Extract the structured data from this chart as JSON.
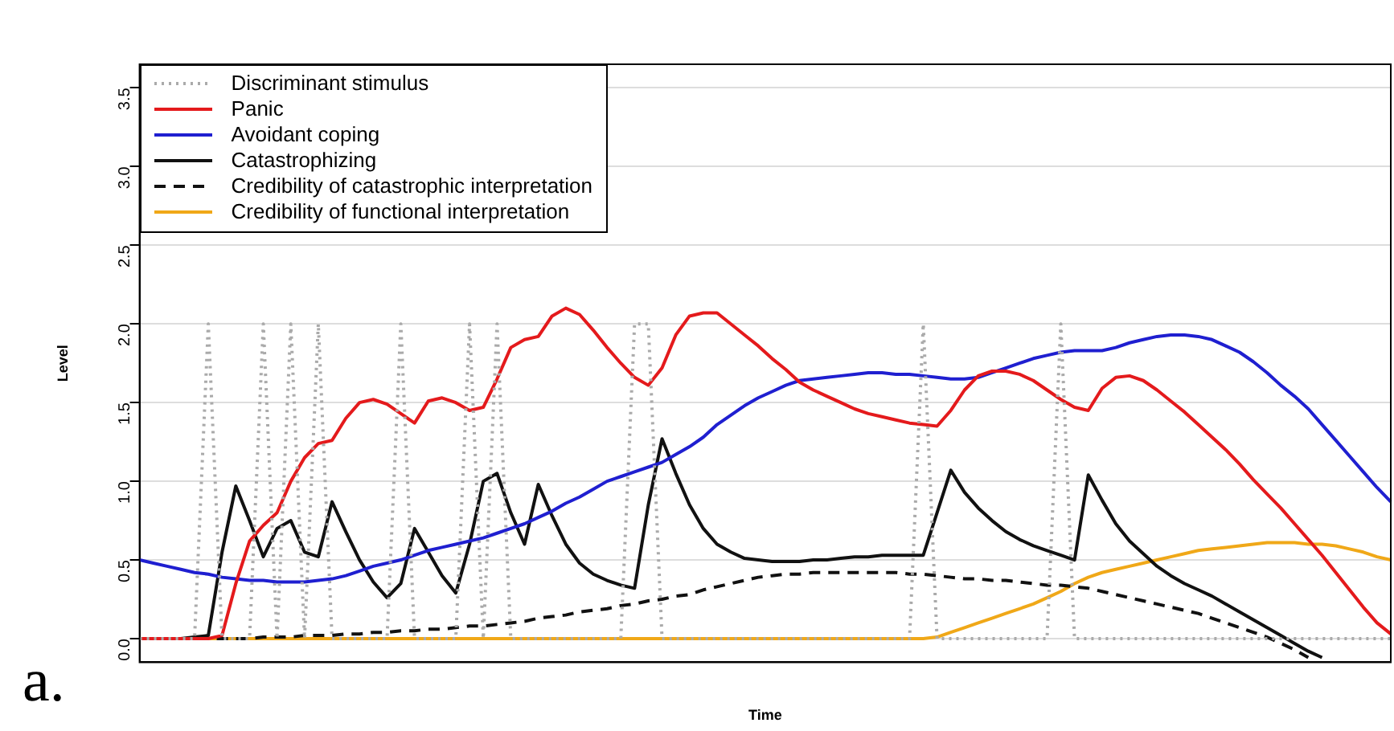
{
  "chart_data": {
    "type": "line",
    "xlabel": "Time",
    "ylabel": "Level",
    "ylim": [
      -0.15,
      3.65
    ],
    "yticks": [
      {
        "value": 0,
        "label": "0.0"
      },
      {
        "value": 0.5,
        "label": "0.5"
      },
      {
        "value": 1,
        "label": "1.0"
      },
      {
        "value": 1.5,
        "label": "1.5"
      },
      {
        "value": 2,
        "label": "2.0"
      },
      {
        "value": 2.5,
        "label": "2.5"
      },
      {
        "value": 3,
        "label": "3.0"
      },
      {
        "value": 3.5,
        "label": "3.5"
      }
    ],
    "grid": "y",
    "legend": "top left",
    "tick_labels": "y",
    "marker": "none",
    "annotations": [
      "a."
    ],
    "categories": [
      null,
      null,
      null,
      null,
      null,
      null,
      null,
      null,
      null,
      null,
      null,
      null,
      null,
      null,
      null,
      null,
      null,
      null,
      null,
      null,
      null,
      null,
      null,
      null,
      null,
      null,
      null,
      null,
      null,
      null,
      null,
      null,
      null,
      null,
      null,
      null,
      null,
      null,
      null,
      null,
      null,
      null,
      null,
      null,
      null,
      null,
      null,
      null,
      null,
      null,
      null,
      null,
      null,
      null,
      null,
      null,
      null,
      null,
      null,
      null,
      null,
      null,
      null,
      null,
      null,
      null,
      null,
      null,
      null,
      null,
      null,
      null,
      null,
      null,
      null,
      null,
      null,
      null,
      null,
      null,
      null,
      null,
      null,
      null,
      null,
      null,
      null,
      null,
      null,
      null,
      null,
      null
    ],
    "series": [
      {
        "name": "Discriminant stimulus",
        "color": "#aaaaaa",
        "line_style": "dotted",
        "values": [
          0,
          0,
          0,
          0,
          0,
          2,
          0,
          0,
          0,
          2,
          0,
          2,
          0,
          2,
          0,
          0,
          0,
          0,
          0,
          2,
          0,
          0,
          0,
          0,
          2,
          0,
          2,
          0,
          0,
          0,
          0,
          0,
          0,
          0,
          0,
          0,
          2,
          2,
          0,
          0,
          0,
          0,
          0,
          0,
          0,
          0,
          0,
          0,
          0,
          0,
          0,
          0,
          0,
          0,
          0,
          0,
          0,
          2,
          0,
          0,
          0,
          0,
          0,
          0,
          0,
          0,
          0,
          2,
          0,
          0,
          0,
          0,
          0,
          0,
          0,
          0,
          0,
          0,
          0,
          0,
          0,
          0,
          0,
          0,
          0,
          0,
          0,
          0,
          0,
          0,
          0,
          0
        ]
      },
      {
        "name": "Panic",
        "color": "#e41a1c",
        "line_style": "solid",
        "values": [
          0,
          0,
          0,
          0,
          0,
          0,
          0.02,
          0.35,
          0.62,
          0.72,
          0.8,
          1.0,
          1.15,
          1.24,
          1.26,
          1.4,
          1.5,
          1.52,
          1.49,
          1.43,
          1.37,
          1.51,
          1.53,
          1.5,
          1.45,
          1.47,
          1.65,
          1.85,
          1.9,
          1.92,
          2.05,
          2.1,
          2.06,
          1.96,
          1.85,
          1.75,
          1.66,
          1.61,
          1.72,
          1.93,
          2.05,
          2.07,
          2.07,
          2.0,
          1.93,
          1.86,
          1.78,
          1.71,
          1.63,
          1.58,
          1.54,
          1.5,
          1.46,
          1.43,
          1.41,
          1.39,
          1.37,
          1.36,
          1.35,
          1.45,
          1.58,
          1.67,
          1.7,
          1.7,
          1.68,
          1.64,
          1.58,
          1.52,
          1.47,
          1.45,
          1.59,
          1.66,
          1.67,
          1.64,
          1.58,
          1.51,
          1.44,
          1.36,
          1.28,
          1.2,
          1.11,
          1.01,
          0.92,
          0.83,
          0.73,
          0.63,
          0.53,
          0.42,
          0.31,
          0.2,
          0.1,
          0.03
        ]
      },
      {
        "name": "Avoidant coping",
        "color": "#1f1fd0",
        "line_style": "solid",
        "values": [
          0.5,
          0.48,
          0.46,
          0.44,
          0.42,
          0.41,
          0.39,
          0.38,
          0.37,
          0.37,
          0.36,
          0.36,
          0.36,
          0.37,
          0.38,
          0.4,
          0.43,
          0.46,
          0.48,
          0.5,
          0.53,
          0.56,
          0.58,
          0.6,
          0.62,
          0.64,
          0.67,
          0.7,
          0.73,
          0.77,
          0.81,
          0.86,
          0.9,
          0.95,
          1.0,
          1.03,
          1.06,
          1.09,
          1.12,
          1.17,
          1.22,
          1.28,
          1.36,
          1.42,
          1.48,
          1.53,
          1.57,
          1.61,
          1.64,
          1.65,
          1.66,
          1.67,
          1.68,
          1.69,
          1.69,
          1.68,
          1.68,
          1.67,
          1.66,
          1.65,
          1.65,
          1.66,
          1.69,
          1.72,
          1.75,
          1.78,
          1.8,
          1.82,
          1.83,
          1.83,
          1.83,
          1.85,
          1.88,
          1.9,
          1.92,
          1.93,
          1.93,
          1.92,
          1.9,
          1.86,
          1.82,
          1.76,
          1.69,
          1.61,
          1.54,
          1.46,
          1.36,
          1.26,
          1.16,
          1.06,
          0.96,
          0.87
        ]
      },
      {
        "name": "Catastrophizing",
        "color": "#111111",
        "line_style": "solid",
        "values": [
          0,
          0,
          0,
          0,
          0.01,
          0.02,
          0.55,
          0.97,
          0.75,
          0.52,
          0.7,
          0.75,
          0.55,
          0.52,
          0.87,
          0.68,
          0.5,
          0.36,
          0.26,
          0.35,
          0.7,
          0.55,
          0.4,
          0.29,
          0.6,
          1.0,
          1.05,
          0.8,
          0.6,
          0.98,
          0.78,
          0.6,
          0.48,
          0.41,
          0.37,
          0.34,
          0.32,
          0.85,
          1.27,
          1.05,
          0.85,
          0.7,
          0.6,
          0.55,
          0.51,
          0.5,
          0.49,
          0.49,
          0.49,
          0.5,
          0.5,
          0.51,
          0.52,
          0.52,
          0.53,
          0.53,
          0.53,
          0.53,
          0.8,
          1.07,
          0.93,
          0.83,
          0.75,
          0.68,
          0.63,
          0.59,
          0.56,
          0.53,
          0.5,
          1.04,
          0.88,
          0.73,
          0.62,
          0.54,
          0.46,
          0.4,
          0.35,
          0.31,
          0.27,
          0.22,
          0.17,
          0.12,
          0.07,
          0.02,
          -0.03,
          -0.08,
          -0.12,
          null,
          null,
          null,
          null,
          null
        ]
      },
      {
        "name": "Credibility of catastrophic interpretation",
        "color": "#111111",
        "line_style": "dashed",
        "values": [
          0,
          0,
          0,
          0,
          0,
          0,
          0,
          0,
          0,
          0.01,
          0.01,
          0.01,
          0.02,
          0.02,
          0.02,
          0.03,
          0.03,
          0.04,
          0.04,
          0.05,
          0.05,
          0.06,
          0.06,
          0.07,
          0.08,
          0.08,
          0.09,
          0.1,
          0.11,
          0.13,
          0.14,
          0.15,
          0.17,
          0.18,
          0.19,
          0.21,
          0.22,
          0.24,
          0.25,
          0.27,
          0.28,
          0.31,
          0.33,
          0.35,
          0.37,
          0.39,
          0.4,
          0.41,
          0.41,
          0.42,
          0.42,
          0.42,
          0.42,
          0.42,
          0.42,
          0.42,
          0.41,
          0.41,
          0.4,
          0.39,
          0.38,
          0.38,
          0.37,
          0.37,
          0.36,
          0.35,
          0.34,
          0.34,
          0.33,
          0.32,
          0.3,
          0.28,
          0.26,
          0.24,
          0.22,
          0.2,
          0.18,
          0.16,
          0.13,
          0.1,
          0.07,
          0.04,
          0.01,
          -0.03,
          -0.07,
          -0.12,
          null,
          null,
          null,
          null,
          null,
          null
        ]
      },
      {
        "name": "Credibility of functional interpretation",
        "color": "#f0a818",
        "line_style": "solid",
        "values": [
          null,
          null,
          null,
          null,
          0,
          0,
          0,
          0,
          0,
          0,
          0,
          0,
          0,
          0,
          0,
          0,
          0,
          0,
          0,
          0,
          0,
          0,
          0,
          0,
          0,
          0,
          0,
          0,
          0,
          0,
          0,
          0,
          0,
          0,
          0,
          0,
          0,
          0,
          0,
          0,
          0,
          0,
          0,
          0,
          0,
          0,
          0,
          0,
          0,
          0,
          0,
          0,
          0,
          0,
          0,
          0,
          0,
          0,
          0.01,
          0.04,
          0.07,
          0.1,
          0.13,
          0.16,
          0.19,
          0.22,
          0.26,
          0.3,
          0.35,
          0.39,
          0.42,
          0.44,
          0.46,
          0.48,
          0.5,
          0.52,
          0.54,
          0.56,
          0.57,
          0.58,
          0.59,
          0.6,
          0.61,
          0.61,
          0.61,
          0.6,
          0.6,
          0.59,
          0.57,
          0.55,
          0.52,
          0.5
        ]
      }
    ]
  }
}
